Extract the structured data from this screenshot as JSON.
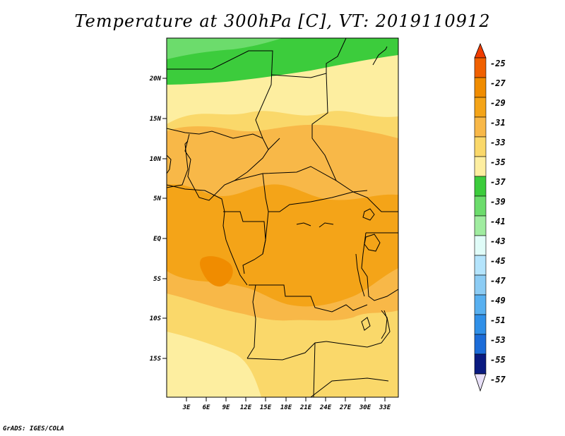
{
  "title": "Temperature at 300hPa [C], VT: 2019110912",
  "credit": "GrADS: IGES/COLA",
  "map": {
    "y_ticks": [
      "20N",
      "15N",
      "10N",
      "5N",
      "EQ",
      "5S",
      "10S",
      "15S"
    ],
    "x_ticks": [
      "3E",
      "6E",
      "9E",
      "12E",
      "15E",
      "18E",
      "21E",
      "24E",
      "27E",
      "30E",
      "33E"
    ],
    "lon_range": [
      0,
      35
    ],
    "lat_range": [
      -20,
      24.5
    ]
  },
  "colorbar": {
    "levels": [
      "-25",
      "-27",
      "-29",
      "-31",
      "-33",
      "-35",
      "-37",
      "-39",
      "-41",
      "-43",
      "-45",
      "-47",
      "-49",
      "-51",
      "-53",
      "-55",
      "-57"
    ],
    "colors": [
      "#f06000",
      "#f08c00",
      "#f4a418",
      "#f8b848",
      "#fad86a",
      "#fdeea0",
      "#3ccc3c",
      "#6cdc6c",
      "#a0eca0",
      "#e0fcf8",
      "#b4e4fc",
      "#8cccf4",
      "#58b0f0",
      "#3090e8",
      "#1c6cd8",
      "#1048b8",
      "#0a1a80"
    ],
    "top_color": "#f03c00",
    "bottom_color": "#e8e0f8"
  },
  "field_colors": {
    "c25_27": "#f08c00",
    "c27_29": "#f4a418",
    "c29_31": "#f8b848",
    "c31_33": "#fad86a",
    "c33_35": "#fdeea0",
    "c35_37": "#3ccc3c",
    "c37_39": "#6cdc6c"
  }
}
